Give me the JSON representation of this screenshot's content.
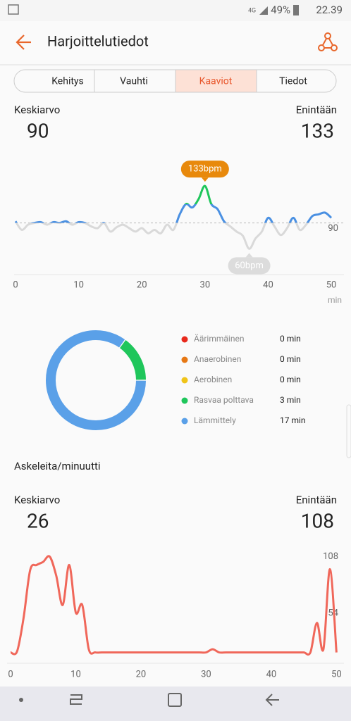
{
  "status_bar": {
    "network": "4G",
    "battery": "49%",
    "time": "22.39"
  },
  "header": {
    "title": "Harjoittelutiedot"
  },
  "tabs": [
    "Kehitys",
    "Vauhti",
    "Kaaviot",
    "Tiedot"
  ],
  "heart_rate": {
    "avg_label": "Keskiarvo",
    "avg": 90,
    "max_label": "Enintään",
    "max": 133,
    "chart": {
      "type": "line",
      "color": "#4a90e2",
      "x": [
        0,
        1,
        2,
        3,
        4,
        5,
        6,
        7,
        8,
        9,
        10,
        11,
        12,
        13,
        14,
        15,
        16,
        17,
        18,
        19,
        20,
        21,
        22,
        23,
        24,
        25,
        26,
        27,
        28,
        29,
        30,
        31,
        32,
        33,
        34,
        35,
        36,
        37,
        38,
        39,
        40,
        41,
        42,
        43,
        44,
        45,
        46,
        47,
        48,
        49,
        50
      ],
      "values": [
        92,
        82,
        88,
        90,
        91,
        88,
        91,
        90,
        92,
        88,
        91,
        90,
        86,
        84,
        90,
        80,
        85,
        88,
        84,
        80,
        84,
        78,
        82,
        78,
        88,
        82,
        100,
        112,
        108,
        118,
        133,
        112,
        106,
        92,
        86,
        80,
        75,
        60,
        72,
        80,
        96,
        86,
        76,
        84,
        96,
        82,
        88,
        98,
        100,
        102,
        96
      ],
      "xlim": [
        0,
        52
      ],
      "ylim": [
        30,
        165
      ],
      "xticks": [
        0,
        10,
        20,
        30,
        40,
        50
      ],
      "yticks": [
        90
      ],
      "x_unit": "min",
      "max_annotation": "133bpm",
      "min_annotation": "60bpm"
    }
  },
  "zones": {
    "type": "donut",
    "items": [
      {
        "name": "Äärimmäinen",
        "color": "#e8291c",
        "value": 0,
        "label": "0 min"
      },
      {
        "name": "Anaerobinen",
        "color": "#e67814",
        "value": 0,
        "label": "0 min"
      },
      {
        "name": "Aerobinen",
        "color": "#f0c419",
        "value": 0,
        "label": "0 min"
      },
      {
        "name": "Rasvaa polttava",
        "color": "#1fc65b",
        "value": 3,
        "label": "3 min"
      },
      {
        "name": "Lämmittely",
        "color": "#5aa0e8",
        "value": 17,
        "label": "17 min"
      }
    ]
  },
  "steps": {
    "title": "Askeleita/minuutti",
    "avg_label": "Keskiarvo",
    "avg": 26,
    "max_label": "Enintään",
    "max": 108,
    "chart": {
      "type": "line",
      "color": "#f0675a",
      "x": [
        0,
        1,
        2,
        3,
        4,
        5,
        6,
        7,
        8,
        9,
        10,
        11,
        12,
        13,
        14,
        15,
        16,
        17,
        18,
        19,
        20,
        21,
        22,
        23,
        24,
        25,
        26,
        27,
        28,
        29,
        30,
        31,
        32,
        33,
        34,
        35,
        36,
        37,
        38,
        39,
        40,
        41,
        42,
        43,
        44,
        45,
        46,
        47,
        48,
        49,
        50
      ],
      "values": [
        17,
        18,
        50,
        95,
        100,
        103,
        108,
        90,
        62,
        100,
        55,
        62,
        20,
        17,
        17,
        17,
        17,
        17,
        17,
        17,
        17,
        17,
        17,
        17,
        17,
        17,
        17,
        17,
        17,
        17,
        17,
        20,
        17,
        17,
        17,
        17,
        17,
        17,
        17,
        17,
        17,
        17,
        17,
        17,
        17,
        17,
        17,
        45,
        20,
        96,
        17
      ],
      "xlim": [
        0,
        50.5
      ],
      "ylim": [
        0,
        115
      ],
      "xticks": [
        0,
        10,
        20,
        30,
        40,
        50
      ],
      "yticks": [
        54,
        108
      ]
    }
  }
}
